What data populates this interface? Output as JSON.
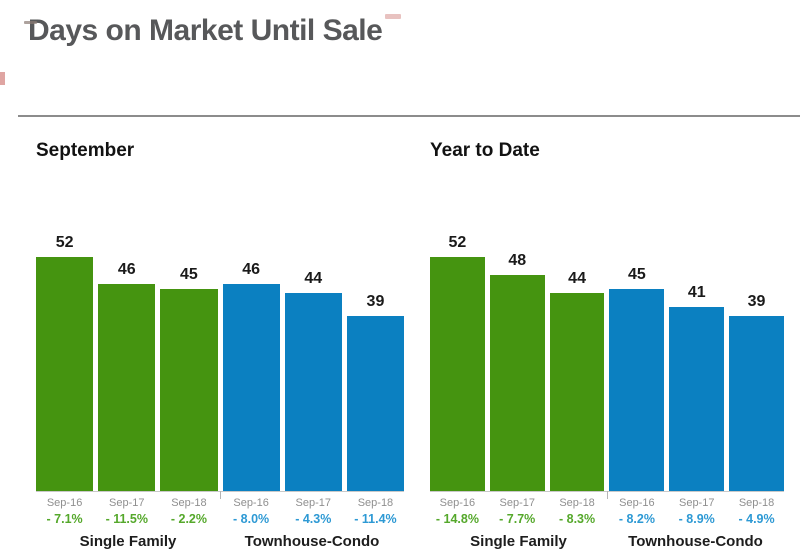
{
  "page": {
    "title": "Days on Market Until Sale"
  },
  "colors": {
    "bar_green": "#459410",
    "bar_blue": "#0b80c1",
    "pct_green": "#55a82b",
    "pct_blue": "#2d99d4",
    "title_gray": "#57585a",
    "period_gray": "#8f8f8f",
    "crop_mark_red": "#c45b55"
  },
  "chart_data": [
    {
      "type": "bar",
      "title": "September",
      "ylabel": "Days on Market",
      "ylim": [
        0,
        52
      ],
      "grid": false,
      "groups": [
        {
          "label": "Single Family",
          "series": "green",
          "bars": [
            {
              "period": "Sep-16",
              "value": 52,
              "change": "- 7.1%"
            },
            {
              "period": "Sep-17",
              "value": 46,
              "change": "- 11.5%"
            },
            {
              "period": "Sep-18",
              "value": 45,
              "change": "- 2.2%"
            }
          ]
        },
        {
          "label": "Townhouse-Condo",
          "series": "blue",
          "bars": [
            {
              "period": "Sep-16",
              "value": 46,
              "change": "- 8.0%"
            },
            {
              "period": "Sep-17",
              "value": 44,
              "change": "- 4.3%"
            },
            {
              "period": "Sep-18",
              "value": 39,
              "change": "- 11.4%"
            }
          ]
        }
      ]
    },
    {
      "type": "bar",
      "title": "Year to Date",
      "ylabel": "Days on Market",
      "ylim": [
        0,
        52
      ],
      "grid": false,
      "groups": [
        {
          "label": "Single Family",
          "series": "green",
          "bars": [
            {
              "period": "Sep-16",
              "value": 52,
              "change": "- 14.8%"
            },
            {
              "period": "Sep-17",
              "value": 48,
              "change": "- 7.7%"
            },
            {
              "period": "Sep-18",
              "value": 44,
              "change": "- 8.3%"
            }
          ]
        },
        {
          "label": "Townhouse-Condo",
          "series": "blue",
          "bars": [
            {
              "period": "Sep-16",
              "value": 45,
              "change": "- 8.2%"
            },
            {
              "period": "Sep-17",
              "value": 41,
              "change": "- 8.9%"
            },
            {
              "period": "Sep-18",
              "value": 39,
              "change": "- 4.9%"
            }
          ]
        }
      ]
    }
  ]
}
